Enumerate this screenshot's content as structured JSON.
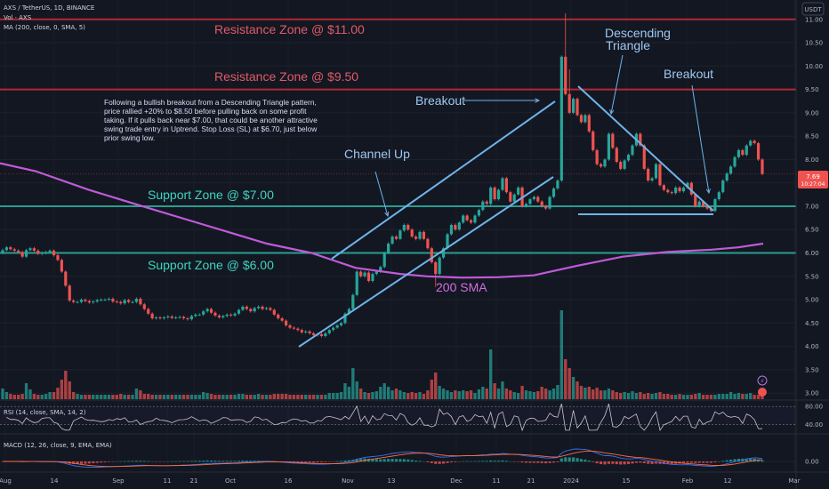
{
  "header": {
    "symbol_line": "AXS / TetherUS, 1D, BINANCE",
    "vol_line": "Vol · AXS",
    "ma_line": "MA (200, close, 0, SMA, 5)",
    "currency_badge": "USDT"
  },
  "price_tag": {
    "value": "7.69",
    "countdown": "10:27:04"
  },
  "colors": {
    "background": "#131722",
    "up": "#26a69a",
    "down": "#ef5350",
    "resistance": "#b22833",
    "support": "#2a9d8f",
    "sma": "#c05ad8",
    "trend": "#6fb4e8",
    "rsi": "#c8c8c8",
    "macd": "#3a6ff0",
    "signal": "#ff6d3a"
  },
  "chart_data": {
    "type": "candlestick",
    "price_axis": {
      "min": 2.85,
      "max": 11.3,
      "ticks": [
        "11.00",
        "10.50",
        "10.00",
        "9.50",
        "9.00",
        "8.50",
        "8.00",
        "7.50",
        "7.00",
        "6.50",
        "6.00",
        "5.50",
        "5.00",
        "4.50",
        "4.00",
        "3.50",
        "3.00"
      ]
    },
    "time_axis": {
      "ticks": [
        "Aug",
        "14",
        "Sep",
        "11",
        "21",
        "Oct",
        "16",
        "Nov",
        "13",
        "Dec",
        "11",
        "21",
        "2024",
        "15",
        "Feb",
        "12",
        "Mar"
      ]
    },
    "closes": [
      6.06,
      6.12,
      6.08,
      6.05,
      6.02,
      5.92,
      6.06,
      6.1,
      6.05,
      5.98,
      6.0,
      6.02,
      6.05,
      5.95,
      5.85,
      5.6,
      5.3,
      4.98,
      4.95,
      4.95,
      5.0,
      4.97,
      4.94,
      4.96,
      4.99,
      5.0,
      5.0,
      5.02,
      4.96,
      4.95,
      4.92,
      4.99,
      4.95,
      4.95,
      5.02,
      4.9,
      4.8,
      4.7,
      4.6,
      4.62,
      4.6,
      4.62,
      4.64,
      4.61,
      4.62,
      4.63,
      4.6,
      4.58,
      4.65,
      4.68,
      4.68,
      4.75,
      4.8,
      4.72,
      4.66,
      4.62,
      4.65,
      4.68,
      4.66,
      4.7,
      4.78,
      4.85,
      4.8,
      4.75,
      4.82,
      4.85,
      4.8,
      4.82,
      4.78,
      4.68,
      4.6,
      4.55,
      4.45,
      4.4,
      4.38,
      4.35,
      4.3,
      4.32,
      4.28,
      4.24,
      4.26,
      4.22,
      4.28,
      4.35,
      4.4,
      4.45,
      4.5,
      4.7,
      4.8,
      5.1,
      5.6,
      5.5,
      5.58,
      5.4,
      5.55,
      5.6,
      5.7,
      6.0,
      6.2,
      6.35,
      6.3,
      6.48,
      6.6,
      6.5,
      6.35,
      6.3,
      6.45,
      6.3,
      6.1,
      5.8,
      5.55,
      5.9,
      6.1,
      6.4,
      6.6,
      6.5,
      6.65,
      6.8,
      6.7,
      6.65,
      6.8,
      6.92,
      7.1,
      7.05,
      7.4,
      7.15,
      7.35,
      7.6,
      7.3,
      7.1,
      7.25,
      7.4,
      7.0,
      7.05,
      7.15,
      7.2,
      7.1,
      7.0,
      6.95,
      7.2,
      7.38,
      7.55,
      10.2,
      9.4,
      9.0,
      9.3,
      8.95,
      8.8,
      8.95,
      8.6,
      8.2,
      7.9,
      7.85,
      8.0,
      8.55,
      8.25,
      7.95,
      7.8,
      7.98,
      8.1,
      8.3,
      8.55,
      8.3,
      7.8,
      7.55,
      7.6,
      7.9,
      7.45,
      7.35,
      7.3,
      7.28,
      7.4,
      7.32,
      7.4,
      7.5,
      7.25,
      7.0,
      7.1,
      7.0,
      6.95,
      6.9,
      7.15,
      7.3,
      7.55,
      7.7,
      7.85,
      8.05,
      8.2,
      8.1,
      8.3,
      8.4,
      8.35,
      8.0,
      7.69
    ],
    "sma200": [
      [
        0,
        7.92
      ],
      [
        40,
        7.75
      ],
      [
        100,
        7.35
      ],
      [
        160,
        7.0
      ],
      [
        230,
        6.6
      ],
      [
        300,
        6.2
      ],
      [
        350,
        6.0
      ],
      [
        400,
        5.68
      ],
      [
        450,
        5.55
      ],
      [
        480,
        5.5
      ],
      [
        520,
        5.47
      ],
      [
        560,
        5.48
      ],
      [
        600,
        5.52
      ],
      [
        650,
        5.73
      ],
      [
        700,
        5.92
      ],
      [
        750,
        6.02
      ],
      [
        800,
        6.07
      ],
      [
        830,
        6.12
      ],
      [
        858,
        6.2
      ]
    ],
    "volumes": [
      0.12,
      0.08,
      0.06,
      0.05,
      0.05,
      0.06,
      0.18,
      0.11,
      0.06,
      0.05,
      0.05,
      0.06,
      0.08,
      0.08,
      0.13,
      0.22,
      0.32,
      0.2,
      0.08,
      0.06,
      0.05,
      0.05,
      0.05,
      0.05,
      0.05,
      0.05,
      0.05,
      0.05,
      0.05,
      0.05,
      0.06,
      0.05,
      0.05,
      0.05,
      0.12,
      0.1,
      0.06,
      0.06,
      0.05,
      0.05,
      0.05,
      0.05,
      0.05,
      0.05,
      0.05,
      0.05,
      0.05,
      0.05,
      0.05,
      0.05,
      0.05,
      0.08,
      0.07,
      0.06,
      0.05,
      0.05,
      0.05,
      0.05,
      0.05,
      0.05,
      0.06,
      0.06,
      0.05,
      0.05,
      0.05,
      0.06,
      0.05,
      0.05,
      0.05,
      0.06,
      0.06,
      0.06,
      0.06,
      0.05,
      0.05,
      0.05,
      0.05,
      0.05,
      0.05,
      0.05,
      0.05,
      0.05,
      0.05,
      0.07,
      0.07,
      0.07,
      0.08,
      0.18,
      0.14,
      0.35,
      0.2,
      0.12,
      0.08,
      0.07,
      0.08,
      0.09,
      0.14,
      0.18,
      0.14,
      0.1,
      0.12,
      0.1,
      0.08,
      0.07,
      0.08,
      0.07,
      0.08,
      0.06,
      0.1,
      0.22,
      0.3,
      0.15,
      0.12,
      0.1,
      0.08,
      0.1,
      0.09,
      0.1,
      0.09,
      0.1,
      0.07,
      0.11,
      0.14,
      0.12,
      0.56,
      0.18,
      0.12,
      0.2,
      0.12,
      0.1,
      0.08,
      0.07,
      0.15,
      0.1,
      0.09,
      0.08,
      0.09,
      0.14,
      0.12,
      0.1,
      0.12,
      0.16,
      1.0,
      0.45,
      0.35,
      0.25,
      0.2,
      0.15,
      0.13,
      0.14,
      0.11,
      0.13,
      0.1,
      0.1,
      0.12,
      0.1,
      0.08,
      0.07,
      0.08,
      0.07,
      0.09,
      0.07,
      0.08,
      0.06,
      0.07,
      0.06,
      0.07,
      0.08,
      0.06,
      0.06,
      0.05,
      0.05,
      0.06,
      0.05,
      0.05,
      0.05,
      0.06,
      0.07,
      0.05,
      0.05,
      0.05,
      0.05,
      0.06,
      0.06,
      0.06,
      0.08,
      0.06,
      0.07,
      0.06,
      0.06,
      0.07,
      0.05,
      0.05,
      0.08,
      0.07
    ],
    "rsi": {
      "label": "RSI (14, close, SMA, 14, 2)",
      "levels": [
        "80.00",
        "40.00"
      ],
      "min": 20,
      "max": 90
    },
    "macd": {
      "label": "MACD (12, 26, close, 9, EMA, EMA)",
      "zero_label": "0.00"
    },
    "annotations": {
      "resistance_11": "Resistance Zone @ $11.00",
      "resistance_95": "Resistance Zone @ $9.50",
      "support_7": "Support Zone @ $7.00",
      "support_6": "Support Zone @ $6.00",
      "sma_label": "200 SMA",
      "channel_up": "Channel Up",
      "breakout_1": "Breakout",
      "breakout_2": "Breakout",
      "descending_1": "Descending",
      "descending_2": "Triangle",
      "note_lines": [
        "Following a bullish breakout from a Descending Triangle pattern,",
        "price rallied +20% to $8.50 before pulling back on some profit",
        "taking. If it pulls back near $7.00, that could be another attractive",
        "swing trade entry in Uptrend. Stop Loss (SL) at $6.70, just below",
        "prior swing low."
      ]
    }
  }
}
